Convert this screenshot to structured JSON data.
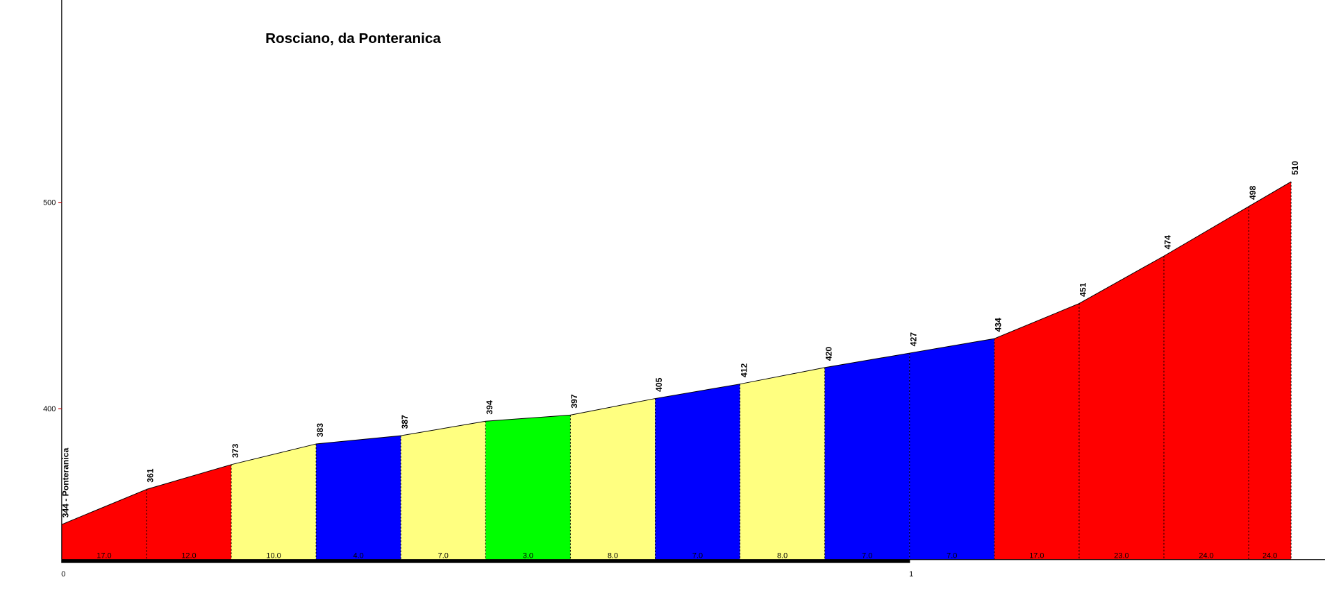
{
  "chart_data": {
    "type": "profile",
    "title": "Rosciano, da Ponteranica",
    "x": [
      0,
      0.1,
      0.2,
      0.3,
      0.4,
      0.5,
      0.6,
      0.7,
      0.8,
      0.9,
      1.0,
      1.1,
      1.2,
      1.3,
      1.4,
      1.45
    ],
    "values": [
      344,
      361,
      373,
      383,
      387,
      394,
      397,
      405,
      412,
      420,
      427,
      434,
      451,
      474,
      498,
      510
    ],
    "value_labels": [
      "344 - Ponteranica",
      "361",
      "373",
      "383",
      "387",
      "394",
      "397",
      "405",
      "412",
      "420",
      "427",
      "434",
      "451",
      "474",
      "498",
      "510"
    ],
    "segments": {
      "values": [
        17,
        12,
        10,
        4,
        7,
        3,
        8,
        7,
        8,
        7,
        7,
        17,
        23,
        24,
        24
      ],
      "value_labels": [
        "17.0",
        "12.0",
        "10.0",
        "4.0",
        "7.0",
        "3.0",
        "8.0",
        "7.0",
        "8.0",
        "7.0",
        "7.0",
        "17.0",
        "23.0",
        "24.0",
        "24.0"
      ],
      "colors": [
        "#ff0000",
        "#ff0000",
        "#ffff80",
        "#0000ff",
        "#ffff80",
        "#00ff00",
        "#ffff80",
        "#0000ff",
        "#ffff80",
        "#0000ff",
        "#0000ff",
        "#ff0000",
        "#ff0000",
        "#ff0000",
        "#ff0000"
      ]
    },
    "xlim": [
      0,
      1.49
    ],
    "xticks": [
      0,
      1
    ],
    "ylim": [
      327,
      598
    ],
    "yticks": [
      400,
      500
    ],
    "grid": false
  }
}
